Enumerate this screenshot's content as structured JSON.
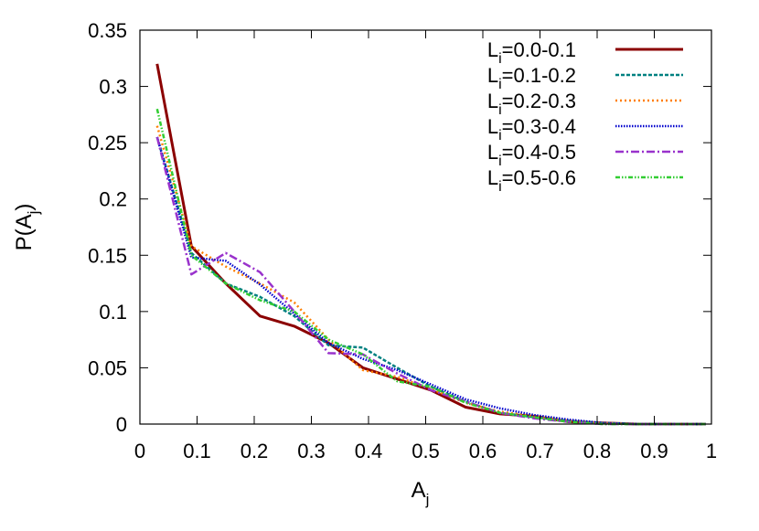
{
  "chart_data": {
    "type": "line",
    "title": "",
    "xlabel": {
      "base": "A",
      "sub": "j"
    },
    "ylabel": {
      "base": "P(A",
      "sub": "j",
      "suffix": ")"
    },
    "xlim": [
      0,
      1
    ],
    "ylim": [
      0,
      0.35
    ],
    "xticks": [
      0,
      0.1,
      0.2,
      0.3,
      0.4,
      0.5,
      0.6,
      0.7,
      0.8,
      0.9,
      1
    ],
    "xtick_labels": [
      "0",
      "0.1",
      "0.2",
      "0.3",
      "0.4",
      "0.5",
      "0.6",
      "0.7",
      "0.8",
      "0.9",
      "1"
    ],
    "yticks": [
      0,
      0.05,
      0.1,
      0.15,
      0.2,
      0.25,
      0.3,
      0.35
    ],
    "ytick_labels": [
      "0",
      "0.05",
      "0.1",
      "0.15",
      "0.2",
      "0.25",
      "0.3",
      "0.35"
    ],
    "grid": false,
    "legend_position": "top-right",
    "series": [
      {
        "name": "L_i=0.0-0.1",
        "label_base": "L",
        "label_sub": "i",
        "label_rest": "=0.0-0.1",
        "color": "#8b0000",
        "dash": "solid",
        "x": [
          0.03,
          0.09,
          0.15,
          0.21,
          0.27,
          0.33,
          0.39,
          0.45,
          0.51,
          0.57,
          0.63,
          0.69,
          0.75,
          0.81,
          0.87,
          0.93,
          0.99
        ],
        "y": [
          0.32,
          0.158,
          0.125,
          0.096,
          0.087,
          0.072,
          0.05,
          0.04,
          0.03,
          0.015,
          0.009,
          0.007,
          0.002,
          0.001,
          0,
          0,
          0
        ]
      },
      {
        "name": "L_i=0.1-0.2",
        "label_base": "L",
        "label_sub": "i",
        "label_rest": "=0.1-0.2",
        "color": "#008080",
        "dash": "dashed",
        "x": [
          0.03,
          0.09,
          0.15,
          0.21,
          0.27,
          0.33,
          0.39,
          0.45,
          0.51,
          0.57,
          0.63,
          0.69,
          0.75,
          0.81,
          0.87,
          0.93,
          0.99
        ],
        "y": [
          0.255,
          0.152,
          0.125,
          0.113,
          0.096,
          0.07,
          0.068,
          0.05,
          0.033,
          0.02,
          0.01,
          0.006,
          0.003,
          0.001,
          0,
          0,
          0
        ]
      },
      {
        "name": "L_i=0.2-0.3",
        "label_base": "L",
        "label_sub": "i",
        "label_rest": "=0.2-0.3",
        "color": "#ff7f00",
        "dash": "dotted",
        "x": [
          0.03,
          0.09,
          0.15,
          0.21,
          0.27,
          0.33,
          0.39,
          0.45,
          0.51,
          0.57,
          0.63,
          0.69,
          0.75,
          0.81,
          0.87,
          0.93,
          0.99
        ],
        "y": [
          0.265,
          0.158,
          0.14,
          0.125,
          0.108,
          0.075,
          0.048,
          0.042,
          0.031,
          0.019,
          0.011,
          0.007,
          0.003,
          0.001,
          0,
          0,
          0
        ]
      },
      {
        "name": "L_i=0.3-0.4",
        "label_base": "L",
        "label_sub": "i",
        "label_rest": "=0.3-0.4",
        "color": "#0000cd",
        "dash": "dense-dotted",
        "x": [
          0.03,
          0.09,
          0.15,
          0.21,
          0.27,
          0.33,
          0.39,
          0.45,
          0.51,
          0.57,
          0.63,
          0.69,
          0.75,
          0.81,
          0.87,
          0.93,
          0.99
        ],
        "y": [
          0.255,
          0.148,
          0.145,
          0.124,
          0.098,
          0.072,
          0.058,
          0.048,
          0.035,
          0.022,
          0.014,
          0.008,
          0.004,
          0.001,
          0,
          0,
          0
        ]
      },
      {
        "name": "L_i=0.4-0.5",
        "label_base": "L",
        "label_sub": "i",
        "label_rest": "=0.4-0.5",
        "color": "#9932cc",
        "dash": "dash-dot",
        "x": [
          0.03,
          0.09,
          0.15,
          0.21,
          0.27,
          0.33,
          0.39,
          0.45,
          0.51,
          0.57,
          0.63,
          0.69,
          0.75,
          0.81,
          0.87,
          0.93,
          0.99
        ],
        "y": [
          0.255,
          0.133,
          0.152,
          0.135,
          0.1,
          0.063,
          0.062,
          0.045,
          0.03,
          0.02,
          0.01,
          0.005,
          0.002,
          0,
          0,
          0,
          0
        ]
      },
      {
        "name": "L_i=0.5-0.6",
        "label_base": "L",
        "label_sub": "i",
        "label_rest": "=0.5-0.6",
        "color": "#32cd32",
        "dash": "dash-dot-dot",
        "x": [
          0.03,
          0.09,
          0.15,
          0.21,
          0.27,
          0.33,
          0.39,
          0.45,
          0.51,
          0.57,
          0.63,
          0.69,
          0.75,
          0.81,
          0.87,
          0.93,
          0.99
        ],
        "y": [
          0.28,
          0.15,
          0.125,
          0.11,
          0.1,
          0.075,
          0.062,
          0.038,
          0.033,
          0.019,
          0.01,
          0.006,
          0.002,
          0,
          0,
          0,
          0
        ]
      }
    ]
  }
}
